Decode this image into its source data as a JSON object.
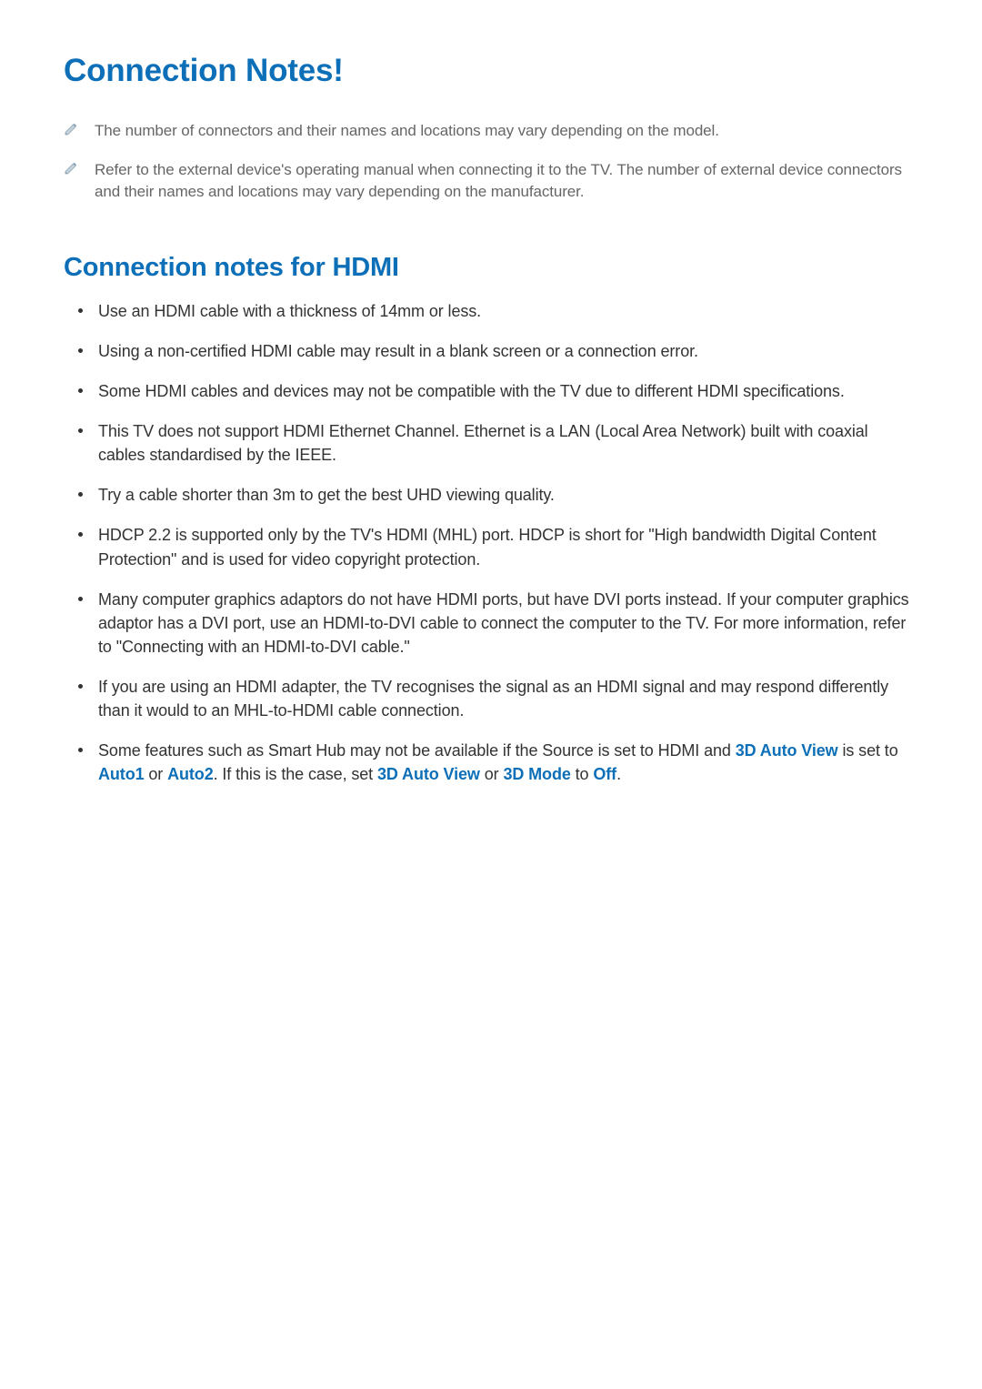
{
  "page": {
    "title": "Connection Notes!",
    "title_color": "#0d6fb8",
    "title_fontsize": 35,
    "body_color": "#333333",
    "muted_color": "#666666",
    "background_color": "#ffffff"
  },
  "top_notes": [
    "The number of connectors and their names and locations may vary depending on the model.",
    "Refer to the external device's operating manual when connecting it to the TV. The number of external device connectors and their names and locations may vary depending on the manufacturer."
  ],
  "pencil_icon": {
    "name": "pencil-icon",
    "stroke": "#8aa3b5",
    "fill": "#c6d2dc"
  },
  "section": {
    "title": "Connection notes for HDMI",
    "title_color": "#0d6fb8",
    "title_fontsize": 29,
    "bullet_color": "#333333",
    "bullet_fontsize": 18,
    "items": [
      {
        "segments": [
          {
            "t": "Use an HDMI cable with a thickness of 14mm or less."
          }
        ]
      },
      {
        "segments": [
          {
            "t": "Using a non-certified HDMI cable may result in a blank screen or a connection error."
          }
        ]
      },
      {
        "segments": [
          {
            "t": "Some HDMI cables and devices may not be compatible with the TV due to different HDMI specifications."
          }
        ]
      },
      {
        "segments": [
          {
            "t": "This TV does not support HDMI Ethernet Channel. Ethernet is a LAN (Local Area Network) built with coaxial cables standardised by the IEEE."
          }
        ]
      },
      {
        "segments": [
          {
            "t": "Try a cable shorter than 3m to get the best UHD viewing quality."
          }
        ]
      },
      {
        "segments": [
          {
            "t": "HDCP 2.2 is supported only by the TV's HDMI (MHL) port. HDCP is short for \"High bandwidth Digital Content Protection\" and is used for video copyright protection."
          }
        ]
      },
      {
        "segments": [
          {
            "t": "Many computer graphics adaptors do not have HDMI ports, but have DVI ports instead. If your computer graphics adaptor has a DVI port, use an HDMI-to-DVI cable to connect the computer to the TV. For more information, refer to \"Connecting with an HDMI-to-DVI cable.\""
          }
        ]
      },
      {
        "segments": [
          {
            "t": "If you are using an HDMI adapter, the TV recognises the signal as an HDMI signal and may respond differently than it would to an MHL-to-HDMI cable connection."
          }
        ]
      },
      {
        "segments": [
          {
            "t": "Some features such as Smart Hub may not be available if the Source is set to HDMI and "
          },
          {
            "t": "3D Auto View",
            "hl": true
          },
          {
            "t": " is set to "
          },
          {
            "t": "Auto1",
            "hl": true
          },
          {
            "t": " or "
          },
          {
            "t": "Auto2",
            "hl": true
          },
          {
            "t": ". If this is the case, set "
          },
          {
            "t": "3D Auto View",
            "hl": true
          },
          {
            "t": " or "
          },
          {
            "t": "3D Mode",
            "hl": true
          },
          {
            "t": " to "
          },
          {
            "t": "Off",
            "hl": true
          },
          {
            "t": "."
          }
        ]
      }
    ]
  }
}
